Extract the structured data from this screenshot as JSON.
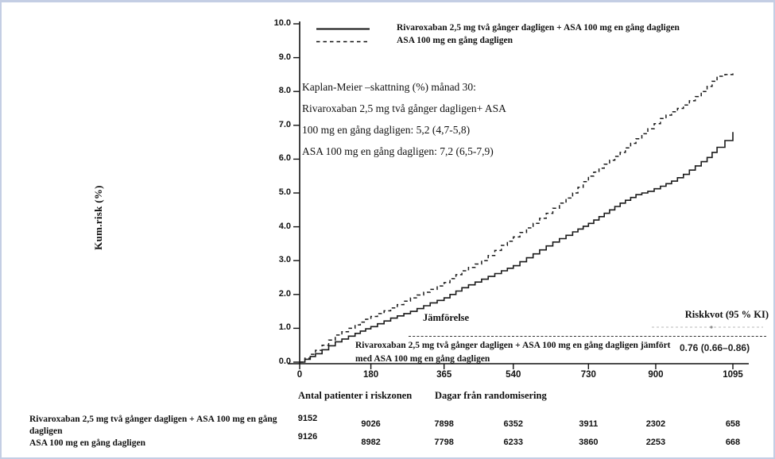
{
  "legend": {
    "series1": "Rivaroxaban 2,5 mg två gånger dagligen + ASA 100 mg en gång dagligen",
    "series2": "ASA 100 mg en gång dagligen"
  },
  "annotation": {
    "lines": [
      "Kaplan-Meier –skattning (%) månad 30:",
      "Rivaroxaban 2,5 mg två gånger dagligen+ ASA",
      "100 mg en gång dagligen: 5,2 (4,7-5,8)",
      "ASA 100 mg en gång dagligen: 7,2 (6,5-7,9)"
    ]
  },
  "axes": {
    "y_label": "Kum.risk (%)",
    "y_tick_labels": [
      "0.0",
      "1.0",
      "2.0",
      "3.0",
      "4.0",
      "5.0",
      "6.0",
      "7.0",
      "8.0",
      "9.0",
      "10.0"
    ],
    "x_tick_labels": [
      "0",
      "180",
      "365",
      "540",
      "730",
      "900",
      "1095"
    ],
    "x_title": "Dagar från randomisering"
  },
  "comparison": {
    "header_left": "Jämförelse",
    "header_right": "Riskkvot (95 % KI)",
    "row_label": "Rivaroxaban 2,5 mg två gånger dagligen + ASA 100 mg en gång dagligen jämfört med ASA 100 mg en gång dagligen",
    "row_value": "0.76 (0.66–0.86)"
  },
  "risk_table": {
    "title": "Antal patienter i riskzonen",
    "rows": [
      {
        "label": "Rivaroxaban 2,5 mg två gånger dagligen + ASA 100 mg en gång dagligen",
        "counts": [
          "9152",
          "9026",
          "7898",
          "6352",
          "3911",
          "2302",
          "658"
        ]
      },
      {
        "label": "ASA 100 mg en gång dagligen",
        "counts": [
          "9126",
          "8982",
          "7798",
          "6233",
          "3860",
          "2253",
          "668"
        ]
      }
    ]
  },
  "chart_data": {
    "type": "line",
    "subtype": "kaplan-meier-step",
    "title": "",
    "xlabel": "Dagar från randomisering",
    "ylabel": "Kum.risk (%)",
    "xlim": [
      0,
      1095
    ],
    "ylim": [
      0,
      10
    ],
    "x_ticks": [
      0,
      180,
      365,
      540,
      730,
      900,
      1095
    ],
    "y_ticks": [
      0,
      1,
      2,
      3,
      4,
      5,
      6,
      7,
      8,
      9,
      10
    ],
    "grid": false,
    "legend_position": "top-left",
    "km_estimate_month30": {
      "rivaroxaban_asa": "5,2 (4,7-5,8)",
      "asa": "7,2 (6,5-7,9)"
    },
    "hazard_ratio": "0.76 (0.66–0.86)",
    "series": [
      {
        "name": "Rivaroxaban 2,5 mg två gånger dagligen + ASA 100 mg en gång dagligen",
        "style": "solid",
        "color": "#1a1a1a",
        "points": [
          [
            0,
            0
          ],
          [
            40,
            0.25
          ],
          [
            90,
            0.6
          ],
          [
            140,
            0.85
          ],
          [
            180,
            1.05
          ],
          [
            230,
            1.3
          ],
          [
            280,
            1.5
          ],
          [
            330,
            1.75
          ],
          [
            365,
            1.9
          ],
          [
            410,
            2.2
          ],
          [
            460,
            2.45
          ],
          [
            510,
            2.7
          ],
          [
            540,
            2.85
          ],
          [
            590,
            3.2
          ],
          [
            640,
            3.55
          ],
          [
            690,
            3.85
          ],
          [
            730,
            4.1
          ],
          [
            770,
            4.4
          ],
          [
            810,
            4.7
          ],
          [
            850,
            4.95
          ],
          [
            880,
            5.05
          ],
          [
            912,
            5.2
          ],
          [
            940,
            5.35
          ],
          [
            970,
            5.55
          ],
          [
            1000,
            5.8
          ],
          [
            1030,
            6.05
          ],
          [
            1055,
            6.35
          ],
          [
            1075,
            6.55
          ],
          [
            1095,
            6.8
          ]
        ]
      },
      {
        "name": "ASA 100 mg en gång dagligen",
        "style": "dashed",
        "color": "#1a1a1a",
        "points": [
          [
            0,
            0
          ],
          [
            40,
            0.35
          ],
          [
            90,
            0.8
          ],
          [
            140,
            1.1
          ],
          [
            180,
            1.35
          ],
          [
            230,
            1.6
          ],
          [
            280,
            1.9
          ],
          [
            330,
            2.15
          ],
          [
            365,
            2.35
          ],
          [
            410,
            2.7
          ],
          [
            460,
            3.0
          ],
          [
            510,
            3.45
          ],
          [
            540,
            3.7
          ],
          [
            590,
            4.1
          ],
          [
            640,
            4.55
          ],
          [
            690,
            5.0
          ],
          [
            730,
            5.5
          ],
          [
            770,
            5.85
          ],
          [
            810,
            6.2
          ],
          [
            850,
            6.6
          ],
          [
            880,
            6.9
          ],
          [
            912,
            7.2
          ],
          [
            940,
            7.4
          ],
          [
            970,
            7.6
          ],
          [
            1000,
            7.85
          ],
          [
            1030,
            8.15
          ],
          [
            1055,
            8.45
          ],
          [
            1075,
            8.5
          ],
          [
            1095,
            8.55
          ]
        ]
      }
    ],
    "risk_table": {
      "x": [
        0,
        180,
        365,
        540,
        730,
        900,
        1095
      ],
      "rivaroxaban_asa": [
        9152,
        9026,
        7898,
        6352,
        3911,
        2302,
        658
      ],
      "asa": [
        9126,
        8982,
        7798,
        6233,
        3860,
        2253,
        668
      ]
    }
  }
}
